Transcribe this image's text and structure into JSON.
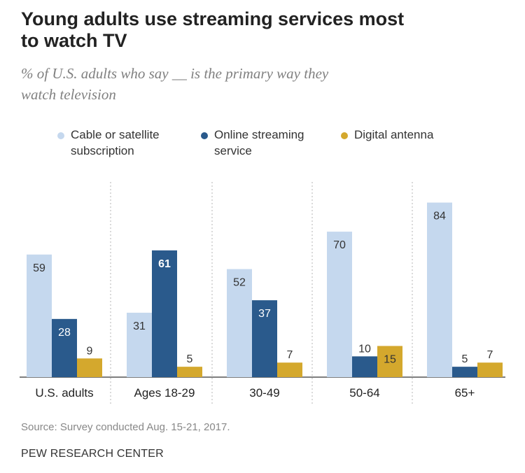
{
  "title_line1": "Young adults use streaming services most",
  "title_line2": "to watch TV",
  "subtitle_line1": "% of U.S. adults who say __ is the primary way they",
  "subtitle_line2": "watch television",
  "legend": [
    {
      "line1": "Cable or satellite",
      "line2": "subscription",
      "color": "#c5d8ee"
    },
    {
      "line1": "Online streaming",
      "line2": "service",
      "color": "#2a5a8c"
    },
    {
      "line1": "Digital antenna",
      "line2": "",
      "color": "#d4a82d"
    }
  ],
  "chart_data": {
    "type": "bar",
    "categories": [
      "U.S. adults",
      "Ages 18-29",
      "30-49",
      "50-64",
      "65+"
    ],
    "series": [
      {
        "name": "Cable or satellite subscription",
        "values": [
          59,
          31,
          52,
          70,
          84
        ],
        "color": "#c5d8ee",
        "label_color": "#333333"
      },
      {
        "name": "Online streaming service",
        "values": [
          28,
          61,
          37,
          10,
          5
        ],
        "color": "#2a5a8c",
        "label_color": "#ffffff"
      },
      {
        "name": "Digital antenna",
        "values": [
          9,
          5,
          7,
          15,
          7
        ],
        "color": "#d4a82d",
        "label_color": "#333333"
      }
    ],
    "ylim": [
      0,
      90
    ],
    "grid": false,
    "legend_position": "top"
  },
  "source": "Source: Survey conducted Aug. 15-21, 2017.",
  "organization": "PEW RESEARCH CENTER"
}
